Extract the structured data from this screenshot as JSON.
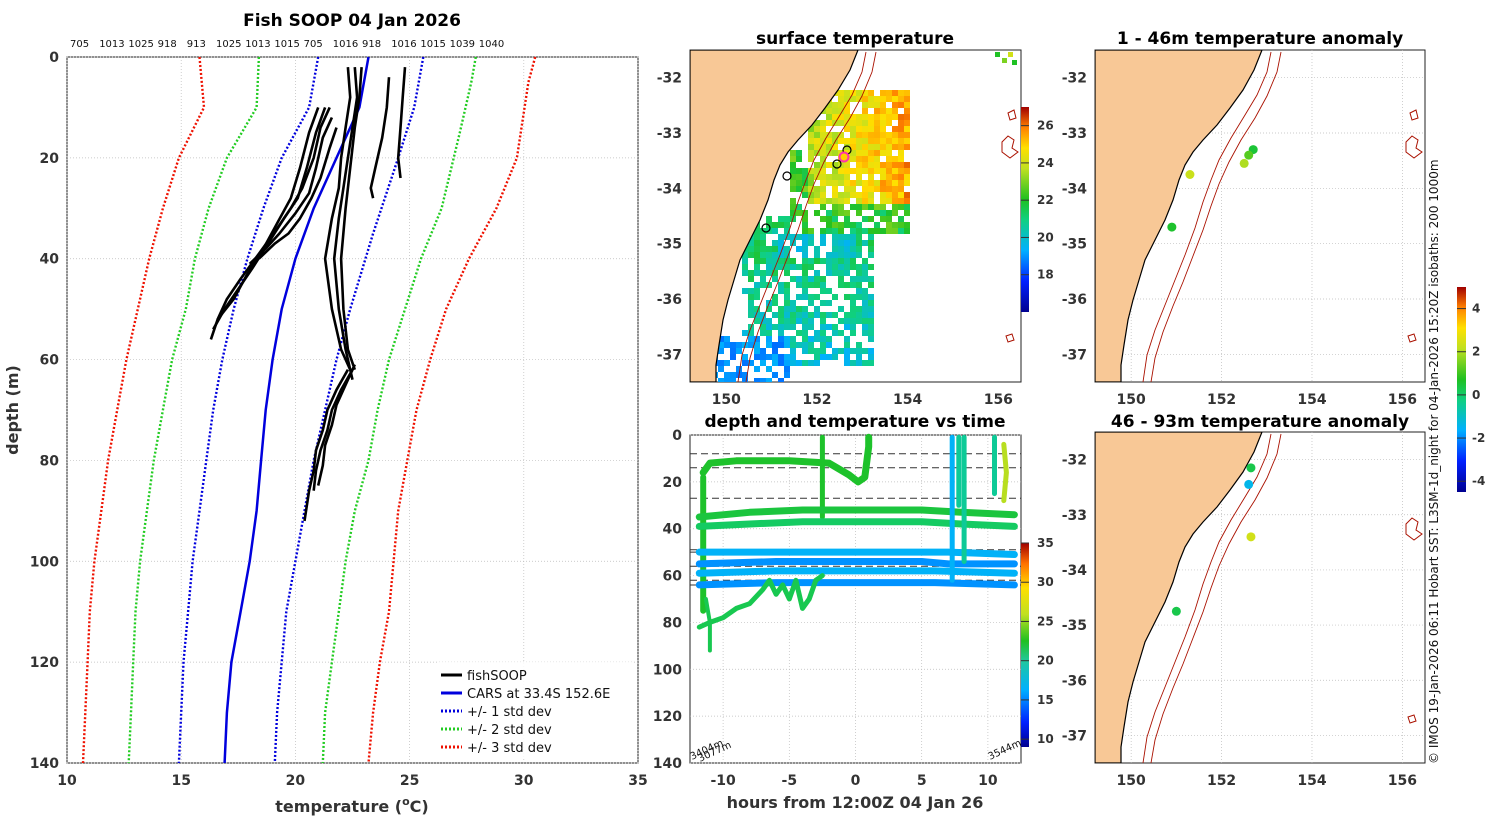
{
  "chart_data": [
    {
      "id": "profile",
      "type": "line",
      "title": "Fish SOOP 04 Jan 2026",
      "xlabel": "temperature (",
      "xlabel_unit": "o",
      "xlabel_end": "C)",
      "ylabel": "depth (m)",
      "xlim": [
        10,
        35
      ],
      "ylim": [
        0,
        140
      ],
      "xticks": [
        "10",
        "15",
        "20",
        "25",
        "30",
        "35"
      ],
      "yticks": [
        "0",
        "20",
        "40",
        "60",
        "80",
        "100",
        "120",
        "140"
      ],
      "top_labels": [
        "705",
        "1013",
        "1025",
        "918",
        "913",
        "1025",
        "1013",
        "1015",
        "705",
        "1016",
        "918",
        "1016",
        "1015",
        "1039",
        "1040"
      ],
      "cars_location": "33.4S 152.6E",
      "legend": [
        "fishSOOP",
        "CARS at 33.4S 152.6E",
        "+/- 1 std dev",
        "+/- 2 std dev",
        "+/- 3 std dev"
      ],
      "series": [
        {
          "name": "CARS at 33.4S 152.6E",
          "color": "#0000dd",
          "style": "solid",
          "points": [
            [
              23.2,
              0
            ],
            [
              22.8,
              10
            ],
            [
              21.8,
              20
            ],
            [
              20.8,
              30
            ],
            [
              20.0,
              40
            ],
            [
              19.4,
              50
            ],
            [
              19.0,
              60
            ],
            [
              18.7,
              70
            ],
            [
              18.5,
              80
            ],
            [
              18.3,
              90
            ],
            [
              18.0,
              100
            ],
            [
              17.6,
              110
            ],
            [
              17.2,
              120
            ],
            [
              17.0,
              130
            ],
            [
              16.9,
              140
            ]
          ]
        },
        {
          "name": "-1 std dev",
          "color": "#0000dd",
          "style": "dotted",
          "points": [
            [
              21.0,
              0
            ],
            [
              20.6,
              10
            ],
            [
              19.4,
              20
            ],
            [
              18.6,
              30
            ],
            [
              17.9,
              40
            ],
            [
              17.3,
              50
            ],
            [
              16.8,
              60
            ],
            [
              16.4,
              70
            ],
            [
              16.1,
              80
            ],
            [
              15.8,
              90
            ],
            [
              15.5,
              100
            ],
            [
              15.3,
              110
            ],
            [
              15.1,
              120
            ],
            [
              15.0,
              130
            ],
            [
              14.9,
              140
            ]
          ]
        },
        {
          "name": "+1 std dev",
          "color": "#0000dd",
          "style": "dotted",
          "points": [
            [
              25.6,
              0
            ],
            [
              25.2,
              10
            ],
            [
              24.5,
              20
            ],
            [
              23.4,
              35
            ],
            [
              22.4,
              50
            ],
            [
              21.8,
              60
            ],
            [
              21.3,
              70
            ],
            [
              20.8,
              80
            ],
            [
              20.4,
              90
            ],
            [
              20.0,
              100
            ],
            [
              19.6,
              110
            ],
            [
              19.4,
              120
            ],
            [
              19.2,
              130
            ],
            [
              19.1,
              140
            ]
          ]
        },
        {
          "name": "-2 std dev",
          "color": "#22cc22",
          "style": "dotted",
          "points": [
            [
              18.4,
              0
            ],
            [
              18.3,
              10
            ],
            [
              17.0,
              20
            ],
            [
              16.2,
              30
            ],
            [
              15.6,
              40
            ],
            [
              15.2,
              50
            ],
            [
              14.6,
              60
            ],
            [
              14.2,
              70
            ],
            [
              13.8,
              80
            ],
            [
              13.5,
              90
            ],
            [
              13.2,
              100
            ],
            [
              13.0,
              110
            ],
            [
              12.9,
              120
            ],
            [
              12.8,
              130
            ],
            [
              12.7,
              140
            ]
          ]
        },
        {
          "name": "+2 std dev",
          "color": "#22cc22",
          "style": "dotted",
          "points": [
            [
              27.9,
              0
            ],
            [
              27.7,
              5
            ],
            [
              27.2,
              15
            ],
            [
              26.4,
              30
            ],
            [
              25.5,
              40
            ],
            [
              24.8,
              50
            ],
            [
              24.1,
              60
            ],
            [
              23.6,
              70
            ],
            [
              23.2,
              80
            ],
            [
              22.6,
              90
            ],
            [
              22.2,
              100
            ],
            [
              21.9,
              110
            ],
            [
              21.6,
              120
            ],
            [
              21.3,
              130
            ],
            [
              21.2,
              140
            ]
          ]
        },
        {
          "name": "-3 std dev",
          "color": "#ee1100",
          "style": "dotted",
          "points": [
            [
              15.8,
              0
            ],
            [
              16.0,
              10
            ],
            [
              14.9,
              20
            ],
            [
              14.2,
              30
            ],
            [
              13.6,
              40
            ],
            [
              13.1,
              50
            ],
            [
              12.6,
              60
            ],
            [
              12.2,
              70
            ],
            [
              11.8,
              80
            ],
            [
              11.5,
              90
            ],
            [
              11.2,
              100
            ],
            [
              11.0,
              110
            ],
            [
              10.9,
              120
            ],
            [
              10.8,
              130
            ],
            [
              10.7,
              140
            ]
          ]
        },
        {
          "name": "+3 std dev",
          "color": "#ee1100",
          "style": "dotted",
          "points": [
            [
              30.5,
              0
            ],
            [
              30.2,
              5
            ],
            [
              29.7,
              20
            ],
            [
              28.8,
              30
            ],
            [
              27.6,
              40
            ],
            [
              26.6,
              50
            ],
            [
              25.9,
              60
            ],
            [
              25.3,
              70
            ],
            [
              24.9,
              80
            ],
            [
              24.5,
              90
            ],
            [
              24.3,
              100
            ],
            [
              24.1,
              110
            ],
            [
              23.7,
              120
            ],
            [
              23.4,
              130
            ],
            [
              23.2,
              140
            ]
          ]
        }
      ],
      "fishsoop_profiles": [
        [
          [
            21.0,
            10
          ],
          [
            20.6,
            15
          ],
          [
            20.2,
            22
          ],
          [
            19.8,
            28
          ],
          [
            19.2,
            33
          ],
          [
            18.6,
            38
          ],
          [
            17.9,
            43
          ],
          [
            17.3,
            48
          ],
          [
            16.6,
            52
          ],
          [
            16.3,
            56
          ]
        ],
        [
          [
            21.3,
            10
          ],
          [
            20.9,
            15
          ],
          [
            20.5,
            22
          ],
          [
            20.1,
            28
          ],
          [
            19.5,
            32
          ],
          [
            18.8,
            37
          ],
          [
            18.1,
            42
          ],
          [
            17.5,
            46
          ],
          [
            16.9,
            50
          ],
          [
            16.4,
            54
          ]
        ],
        [
          [
            21.5,
            10
          ],
          [
            21.1,
            14
          ],
          [
            20.8,
            20
          ],
          [
            20.3,
            26
          ],
          [
            19.8,
            30
          ],
          [
            19.2,
            34
          ],
          [
            18.4,
            39
          ],
          [
            17.6,
            44
          ],
          [
            17.0,
            48
          ],
          [
            16.6,
            52
          ]
        ],
        [
          [
            21.6,
            12
          ],
          [
            21.2,
            16
          ],
          [
            20.9,
            22
          ],
          [
            20.6,
            27
          ],
          [
            20.0,
            31
          ],
          [
            19.3,
            35
          ],
          [
            18.7,
            38
          ],
          [
            18.0,
            41
          ]
        ],
        [
          [
            21.8,
            14
          ],
          [
            21.5,
            18
          ],
          [
            21.1,
            24
          ],
          [
            20.7,
            28
          ],
          [
            20.2,
            32
          ],
          [
            19.7,
            35
          ],
          [
            19.1,
            37
          ],
          [
            18.4,
            40
          ]
        ],
        [
          [
            22.3,
            2
          ],
          [
            22.4,
            8
          ],
          [
            22.2,
            14
          ],
          [
            22.0,
            20
          ],
          [
            21.9,
            26
          ],
          [
            21.6,
            32
          ],
          [
            21.3,
            40
          ],
          [
            21.6,
            50
          ],
          [
            22.0,
            58
          ],
          [
            22.4,
            62
          ]
        ],
        [
          [
            22.6,
            2
          ],
          [
            22.7,
            8
          ],
          [
            22.5,
            14
          ],
          [
            22.3,
            20
          ],
          [
            22.1,
            26
          ],
          [
            21.9,
            32
          ],
          [
            21.7,
            40
          ],
          [
            21.9,
            50
          ],
          [
            22.2,
            58
          ],
          [
            22.5,
            64
          ]
        ],
        [
          [
            22.9,
            2
          ],
          [
            22.8,
            8
          ],
          [
            22.6,
            14
          ],
          [
            22.4,
            22
          ],
          [
            22.2,
            30
          ],
          [
            22.0,
            40
          ],
          [
            22.1,
            50
          ],
          [
            22.3,
            58
          ],
          [
            22.6,
            62
          ]
        ],
        [
          [
            24.1,
            4
          ],
          [
            24.0,
            10
          ],
          [
            23.8,
            16
          ],
          [
            23.5,
            22
          ],
          [
            23.3,
            26
          ],
          [
            23.4,
            28
          ]
        ],
        [
          [
            24.8,
            2
          ],
          [
            24.7,
            8
          ],
          [
            24.6,
            14
          ],
          [
            24.5,
            20
          ],
          [
            24.6,
            24
          ]
        ],
        [
          [
            22.3,
            62
          ],
          [
            21.8,
            66
          ],
          [
            21.4,
            70
          ],
          [
            21.2,
            74
          ],
          [
            20.9,
            78
          ],
          [
            20.8,
            82
          ],
          [
            20.6,
            86
          ],
          [
            20.4,
            92
          ]
        ],
        [
          [
            22.5,
            62
          ],
          [
            22.0,
            66
          ],
          [
            21.6,
            70
          ],
          [
            21.4,
            74
          ],
          [
            21.1,
            78
          ],
          [
            20.9,
            82
          ],
          [
            20.8,
            86
          ]
        ],
        [
          [
            22.6,
            61
          ],
          [
            22.2,
            65
          ],
          [
            21.8,
            69
          ],
          [
            21.6,
            73
          ],
          [
            21.3,
            77
          ],
          [
            21.2,
            81
          ],
          [
            21.0,
            85
          ]
        ]
      ]
    },
    {
      "id": "surface",
      "type": "heatmap",
      "title": "surface temperature",
      "xlim": [
        149.2,
        156.5
      ],
      "ylim": [
        -37.5,
        -31.5
      ],
      "xticks": [
        "150",
        "152",
        "154",
        "156"
      ],
      "yticks": [
        "-32",
        "-33",
        "-34",
        "-35",
        "-36",
        "-37"
      ],
      "colorbar_ticks": [
        "26",
        "24",
        "22",
        "20",
        "18"
      ],
      "colorbar_range": [
        16,
        27
      ]
    },
    {
      "id": "time",
      "type": "line",
      "title": "depth and temperature vs time",
      "xlabel": "hours from 12:00Z 04 Jan 26",
      "xlim": [
        -12.5,
        12.5
      ],
      "ylim": [
        0,
        140
      ],
      "xticks": [
        "-10",
        "-5",
        "0",
        "5",
        "10"
      ],
      "yticks": [
        "0",
        "20",
        "40",
        "60",
        "80",
        "100",
        "120",
        "140"
      ],
      "colorbar_ticks": [
        "35",
        "30",
        "25",
        "20",
        "15",
        "10"
      ],
      "colorbar_range": [
        9,
        35
      ],
      "corner_labels": [
        "3404m",
        "3077m",
        "3544m"
      ],
      "dashed_levels": [
        8,
        14,
        27,
        49,
        50,
        56,
        62,
        64
      ]
    },
    {
      "id": "anom1",
      "type": "scatter",
      "title": "1 - 46m temperature anomaly",
      "xlim": [
        149.2,
        156.5
      ],
      "ylim": [
        -37.5,
        -31.5
      ],
      "xticks": [
        "150",
        "152",
        "154",
        "156"
      ],
      "yticks": [
        "-32",
        "-33",
        "-34",
        "-35",
        "-36",
        "-37"
      ],
      "points": [
        {
          "lon": 152.7,
          "lat": -33.3,
          "anom": 0.5
        },
        {
          "lon": 152.6,
          "lat": -33.4,
          "anom": 1.2
        },
        {
          "lon": 152.5,
          "lat": -33.55,
          "anom": 2.0
        },
        {
          "lon": 151.3,
          "lat": -33.75,
          "anom": 2.3
        },
        {
          "lon": 150.9,
          "lat": -34.7,
          "anom": 0.6
        }
      ]
    },
    {
      "id": "anom2",
      "type": "scatter",
      "title": "46 - 93m temperature anomaly",
      "xlim": [
        149.2,
        156.5
      ],
      "ylim": [
        -37.5,
        -31.5
      ],
      "xticks": [
        "150",
        "152",
        "154",
        "156"
      ],
      "yticks": [
        "-32",
        "-33",
        "-34",
        "-35",
        "-36",
        "-37"
      ],
      "points": [
        {
          "lon": 152.65,
          "lat": -32.15,
          "anom": 0.3
        },
        {
          "lon": 152.6,
          "lat": -32.45,
          "anom": -1.4
        },
        {
          "lon": 152.65,
          "lat": -33.4,
          "anom": 2.4
        },
        {
          "lon": 151.0,
          "lat": -34.75,
          "anom": 0.3
        }
      ]
    },
    {
      "id": "anom_colorbar",
      "type": "colorbar",
      "ticks": [
        "4",
        "2",
        "0",
        "-2",
        "-4"
      ],
      "range": [
        -4.5,
        5
      ]
    }
  ],
  "side_note": "© IMOS 19-Jan-2026 06:11 Hobart SST: L3SM-1d_night for 04-Jan-2026 15:20Z isobaths: 200  1000m"
}
